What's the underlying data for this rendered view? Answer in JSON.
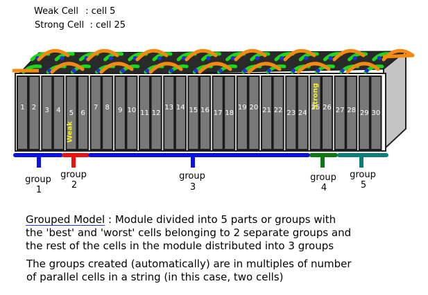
{
  "legend": {
    "weak_label": "Weak Cell",
    "weak_value": ": cell 5",
    "strong_label": "Strong Cell",
    "strong_value": ": cell 25"
  },
  "cells": [
    "1",
    "2",
    "3",
    "4",
    "5",
    "6",
    "7",
    "8",
    "9",
    "10",
    "11",
    "12",
    "13",
    "14",
    "15",
    "16",
    "17",
    "18",
    "19",
    "20",
    "21",
    "22",
    "23",
    "24",
    "25",
    "26",
    "27",
    "28",
    "29",
    "30"
  ],
  "cell_tags": {
    "weak": "Weak",
    "strong": "Strong"
  },
  "groups": [
    {
      "word": "group",
      "number": "1",
      "color": "#0a10e8"
    },
    {
      "word": "group",
      "number": "2",
      "color": "#ef1010"
    },
    {
      "word": "group",
      "number": "3",
      "color": "#0a10e8"
    },
    {
      "word": "group",
      "number": "4",
      "color": "#0a7a10"
    },
    {
      "word": "group",
      "number": "5",
      "color": "#0a7f7a"
    }
  ],
  "colors": {
    "wire": "#f58a12",
    "interconnect": "#19d919",
    "cell_body": "#787878",
    "module_side": "#c4c4c4"
  },
  "caption": {
    "title": "Grouped Model",
    "line1_rest": " : Module divided into 5 parts or groups with",
    "line2": "the 'best' and 'worst' cells belonging to 2 separate groups and",
    "line3": "the rest of the cells in the module distributed into 3 groups",
    "line4": "The groups created (automatically) are in multiples of number",
    "line5": "of parallel cells in a string (in this case, two cells)"
  }
}
